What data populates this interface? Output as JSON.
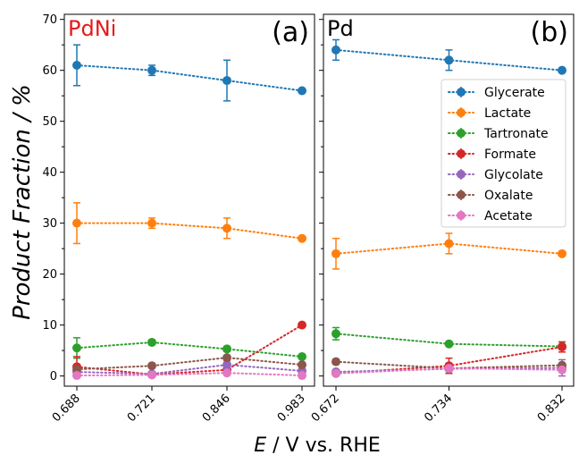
{
  "figure": {
    "ylabel": "Product Fraction / %",
    "xlabel_italic": "E",
    "xlabel_rest": " / V vs. RHE"
  },
  "chart_data": [
    {
      "type": "line",
      "panel_tag": "(a)",
      "panel_name": "PdNi",
      "panel_name_color": "#e41a1c",
      "categories": [
        "0.688",
        "0.721",
        "0.846",
        "0.983"
      ],
      "ylim": [
        -2,
        71
      ],
      "yticks": [
        0,
        10,
        20,
        30,
        40,
        50,
        60,
        70
      ],
      "grid": false,
      "series": [
        {
          "name": "Glycerate",
          "color": "#1f77b4",
          "values": [
            61,
            60,
            58,
            56
          ],
          "errors": [
            4,
            1,
            4,
            0
          ]
        },
        {
          "name": "Lactate",
          "color": "#ff7f0e",
          "values": [
            30,
            30,
            29,
            27
          ],
          "errors": [
            4,
            1,
            2,
            0
          ]
        },
        {
          "name": "Tartronate",
          "color": "#2ca02c",
          "values": [
            5.5,
            6.6,
            5.3,
            3.8
          ],
          "errors": [
            2,
            0.5,
            0.5,
            0.3
          ]
        },
        {
          "name": "Formate",
          "color": "#d62728",
          "values": [
            1.8,
            0.3,
            1.2,
            10
          ],
          "errors": [
            2,
            0.3,
            0.8,
            0
          ]
        },
        {
          "name": "Glycolate",
          "color": "#9467bd",
          "values": [
            0.8,
            0.4,
            2.2,
            1.0
          ],
          "errors": [
            0.6,
            0.3,
            0.8,
            0.3
          ]
        },
        {
          "name": "Oxalate",
          "color": "#8c564b",
          "values": [
            1.3,
            2.0,
            3.6,
            2.2
          ],
          "errors": [
            0.3,
            0.3,
            0.3,
            0.3
          ]
        },
        {
          "name": "Acetate",
          "color": "#e377c2",
          "values": [
            0.1,
            0.2,
            0.6,
            0.1
          ],
          "errors": [
            0.1,
            0.1,
            0.2,
            0.1
          ]
        }
      ]
    },
    {
      "type": "line",
      "panel_tag": "(b)",
      "panel_name": "Pd",
      "panel_name_color": "#000000",
      "categories": [
        "0.672",
        "0.734",
        "0.832"
      ],
      "ylim": [
        -2,
        71
      ],
      "grid": false,
      "legend_position": "upper right",
      "series": [
        {
          "name": "Glycerate",
          "color": "#1f77b4",
          "values": [
            64,
            62,
            60
          ],
          "errors": [
            2,
            2,
            0
          ]
        },
        {
          "name": "Lactate",
          "color": "#ff7f0e",
          "values": [
            24,
            26,
            24
          ],
          "errors": [
            3,
            2,
            0
          ]
        },
        {
          "name": "Tartronate",
          "color": "#2ca02c",
          "values": [
            8.3,
            6.3,
            5.8
          ],
          "errors": [
            1.2,
            0.3,
            0.3
          ]
        },
        {
          "name": "Formate",
          "color": "#d62728",
          "values": [
            0.5,
            2.0,
            5.7
          ],
          "errors": [
            0.3,
            1.5,
            1.0
          ]
        },
        {
          "name": "Glycolate",
          "color": "#9467bd",
          "values": [
            0.8,
            1.4,
            1.6
          ],
          "errors": [
            0.3,
            0.5,
            1.6
          ]
        },
        {
          "name": "Oxalate",
          "color": "#8c564b",
          "values": [
            2.8,
            1.5,
            2.1
          ],
          "errors": [
            0.5,
            0.3,
            0.3
          ]
        },
        {
          "name": "Acetate",
          "color": "#e377c2",
          "values": [
            0.5,
            1.5,
            1.2
          ],
          "errors": [
            0.2,
            0.3,
            0.2
          ]
        }
      ]
    }
  ]
}
